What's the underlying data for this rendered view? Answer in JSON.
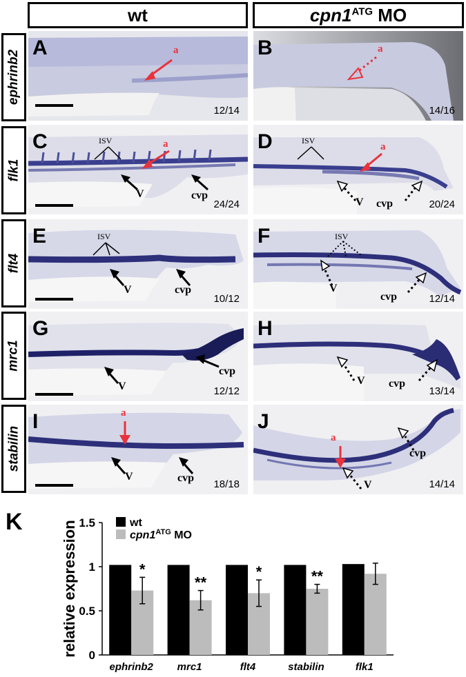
{
  "columns": {
    "wt": "wt",
    "mo_gene": "cpn1",
    "mo_sup": "ATG",
    "mo_suffix": " MO"
  },
  "rows": [
    {
      "gene": "ephrinb2"
    },
    {
      "gene": "flk1"
    },
    {
      "gene": "flt4"
    },
    {
      "gene": "mrc1"
    },
    {
      "gene": "stabilin"
    }
  ],
  "panels": [
    {
      "letter": "A",
      "score": "12/14"
    },
    {
      "letter": "B",
      "score": "14/16"
    },
    {
      "letter": "C",
      "score": "24/24"
    },
    {
      "letter": "D",
      "score": "20/24"
    },
    {
      "letter": "E",
      "score": "10/12"
    },
    {
      "letter": "F",
      "score": "12/14"
    },
    {
      "letter": "G",
      "score": "12/12"
    },
    {
      "letter": "H",
      "score": "13/14"
    },
    {
      "letter": "I",
      "score": "18/18"
    },
    {
      "letter": "J",
      "score": "14/14"
    }
  ],
  "annotations": {
    "a": "a",
    "isv": "ISV",
    "v": "V",
    "cvp": "cvp"
  },
  "colors": {
    "wt_bar": "#000000",
    "mo_bar": "#bcbcbc",
    "highlight_arrow": "#e8323c",
    "stain": "#2d2f7a"
  },
  "chart_data": {
    "panel_letter": "K",
    "type": "bar",
    "ylabel": "relative expression",
    "ylim": [
      0,
      1.5
    ],
    "yticks": [
      "0",
      "0.5",
      "1",
      "1.5"
    ],
    "categories": [
      "ephrinb2",
      "mrc1",
      "flt4",
      "stabilin",
      "flk1"
    ],
    "series": [
      {
        "name": "wt",
        "name_sup": "",
        "values": [
          1.02,
          1.02,
          1.02,
          1.02,
          1.03
        ],
        "errors": [
          0,
          0,
          0,
          0,
          0
        ]
      },
      {
        "name": "cpn1",
        "name_sup": "ATG",
        "name_suffix": " MO",
        "values": [
          0.73,
          0.62,
          0.7,
          0.75,
          0.92
        ],
        "errors": [
          0.15,
          0.11,
          0.15,
          0.05,
          0.12
        ]
      }
    ],
    "significance": [
      "*",
      "**",
      "*",
      "**",
      ""
    ],
    "legend_position": "top-left"
  }
}
